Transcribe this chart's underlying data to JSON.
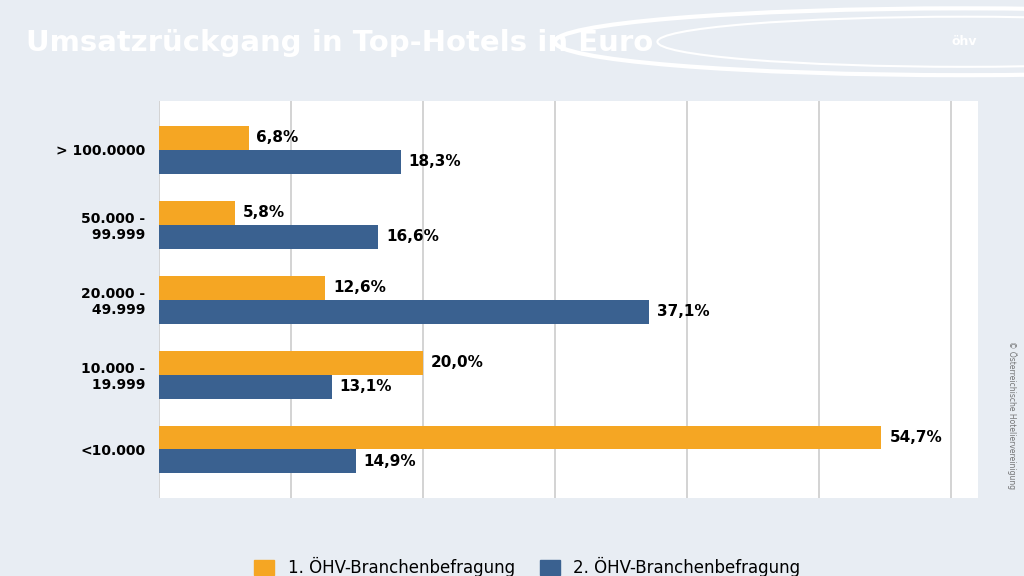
{
  "title": "Umsatzrückgang in Top-Hotels in Euro",
  "title_bg_color": "#3A6190",
  "title_text_color": "#FFFFFF",
  "outer_bg_color": "#E8EDF3",
  "chart_bg_color": "#FFFFFF",
  "categories": [
    "> 100.0000",
    "50.000 -\n 99.999",
    "20.000 -\n 49.999",
    "10.000 -\n 19.999",
    "<10.000"
  ],
  "series1_label": "1. ÖHV-Branchenbefragung",
  "series2_label": "2. ÖHV-Branchenbefragung",
  "series1_values": [
    6.8,
    5.8,
    12.6,
    20.0,
    54.7
  ],
  "series2_values": [
    18.3,
    16.6,
    37.1,
    13.1,
    14.9
  ],
  "series1_color": "#F5A623",
  "series2_color": "#3A6190",
  "bar_height": 0.32,
  "xlim": [
    0,
    62
  ],
  "grid_color": "#CCCCCC",
  "label_fontsize": 11,
  "tick_fontsize": 10,
  "legend_fontsize": 12,
  "watermark_text": "© Österreichische Hoteliervereinigung"
}
